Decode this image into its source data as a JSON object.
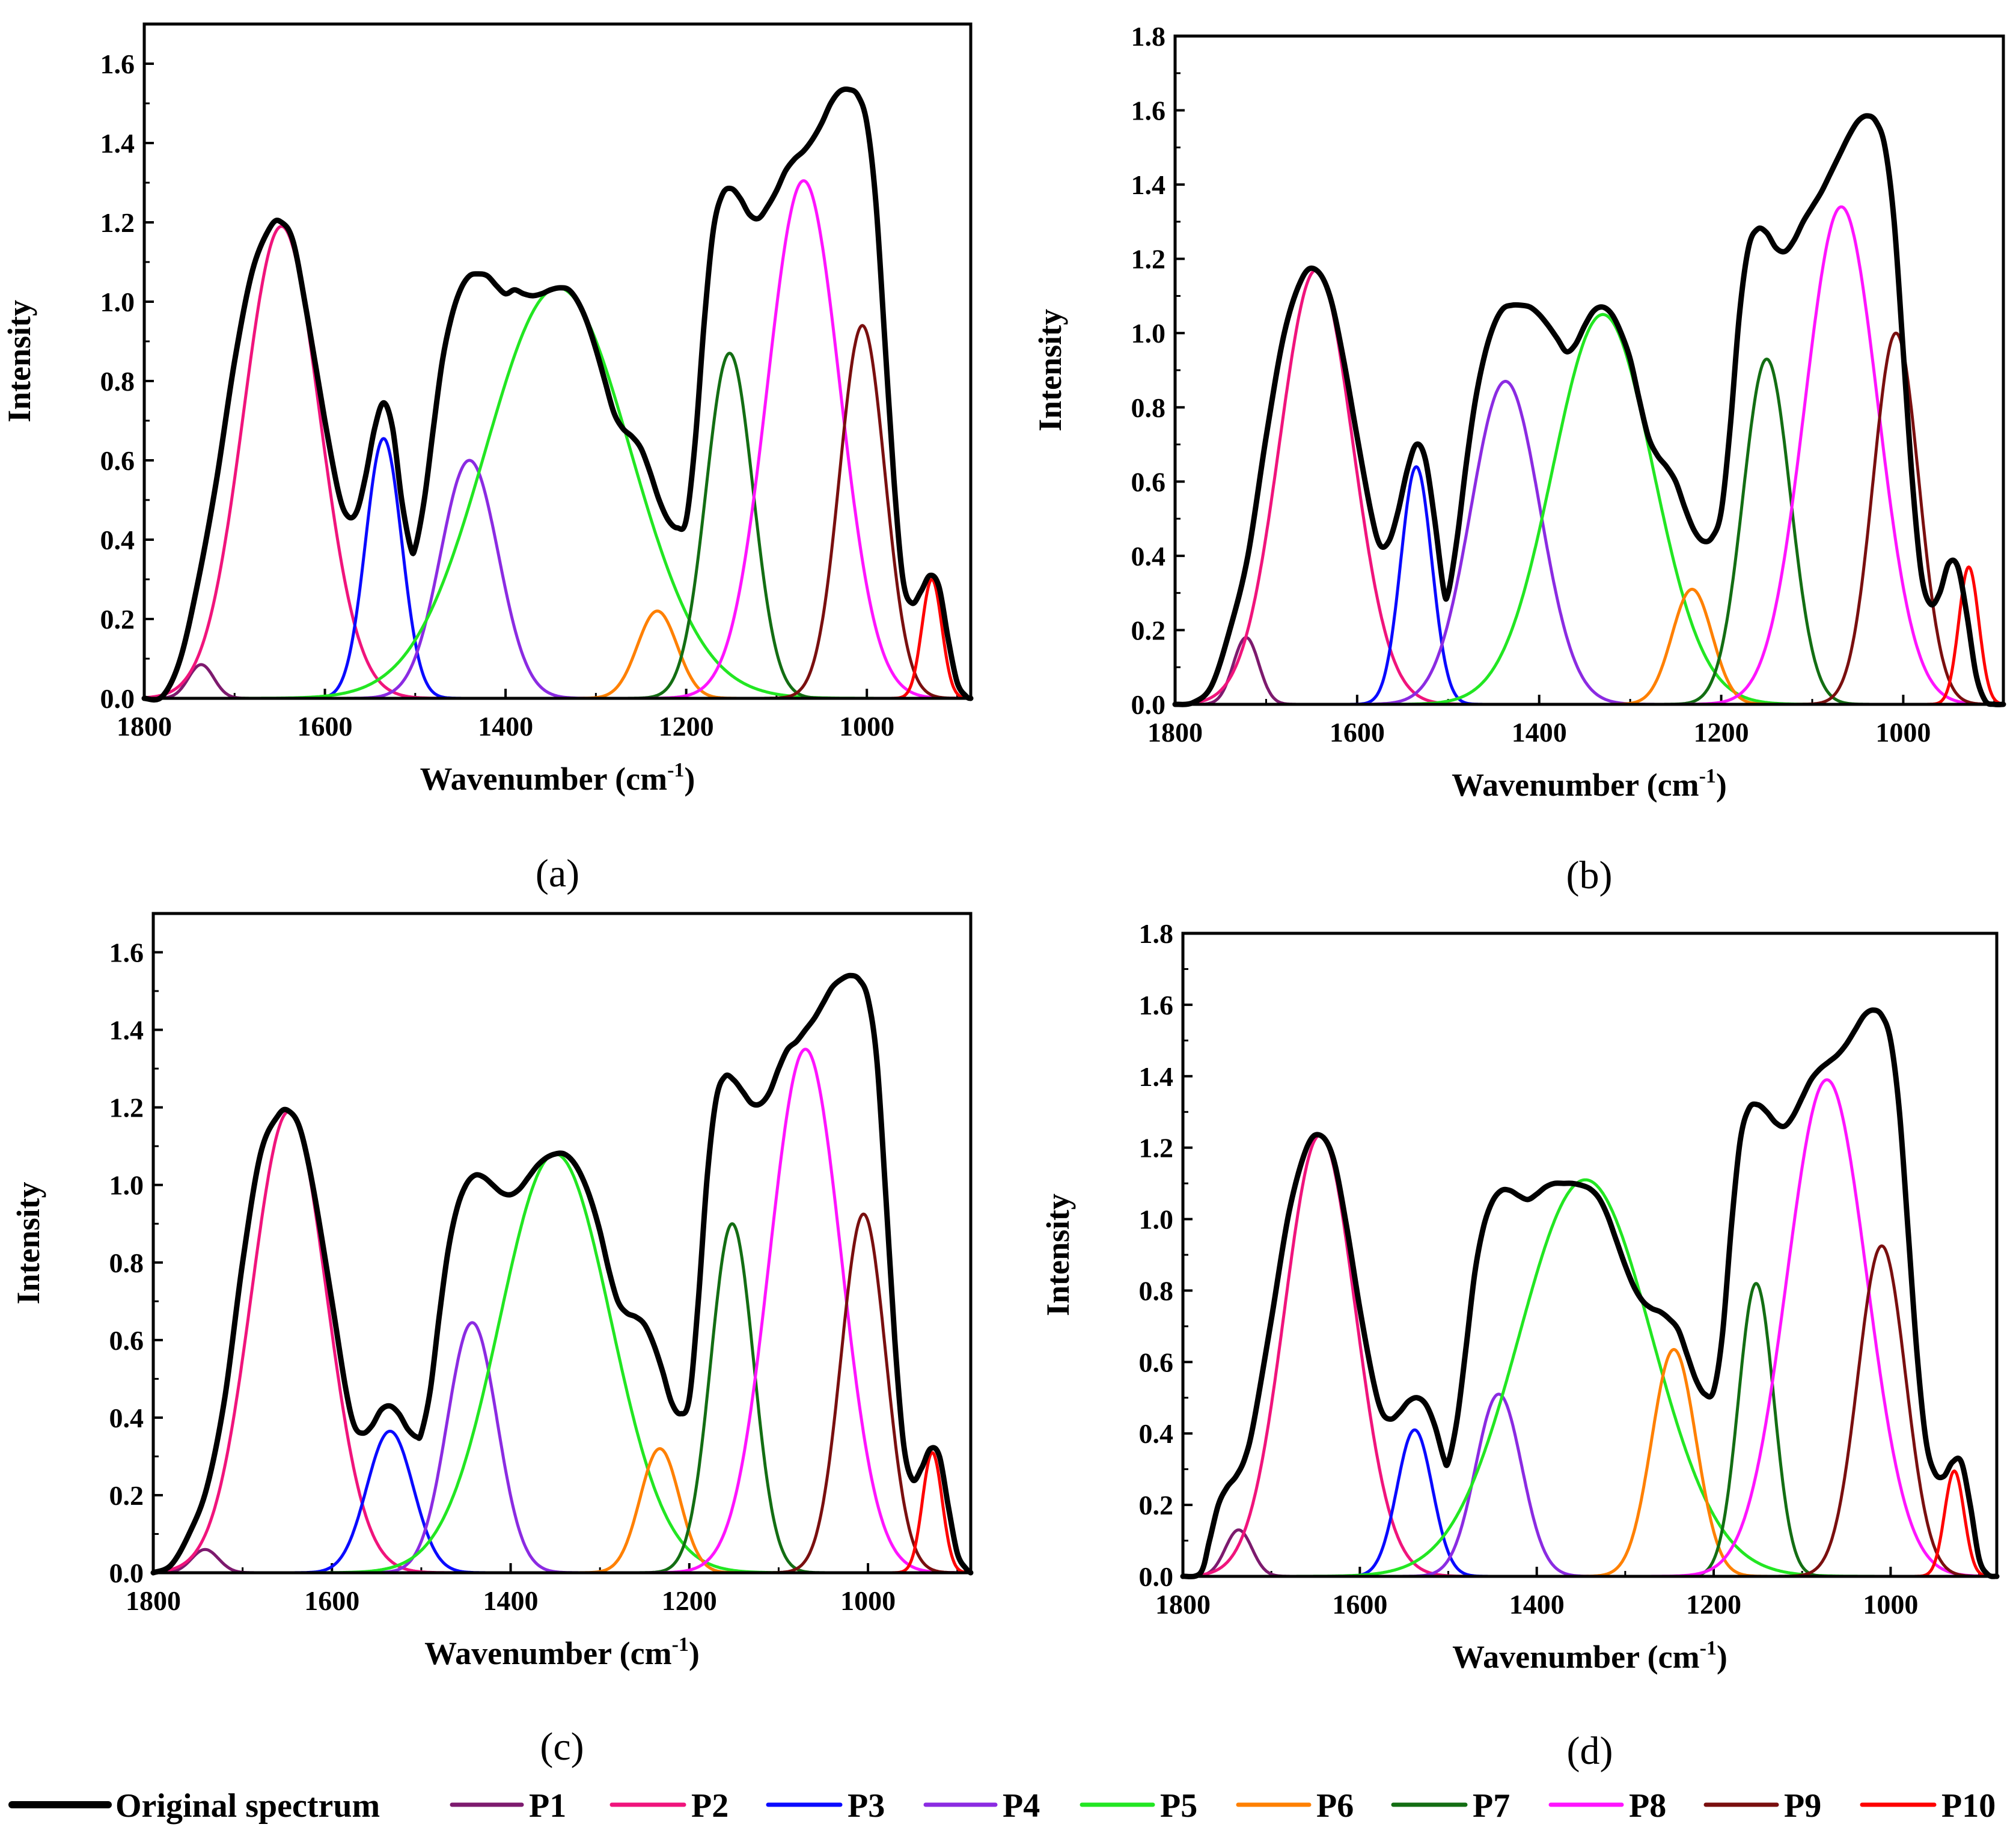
{
  "chart_data": [
    {
      "panel": "(a)",
      "type": "line",
      "xlabel": "Wavenumber (cm",
      "xlabel_sup": "-1",
      "xlabel_close": ")",
      "ylabel": "Intensity",
      "xlim": [
        1800,
        885
      ],
      "ylim": [
        0,
        1.7
      ],
      "xticks": [
        1800,
        1600,
        1400,
        1200,
        1000
      ],
      "yticks": [
        "0.0",
        "0.2",
        "0.4",
        "0.6",
        "0.8",
        "1.0",
        "1.2",
        "1.4",
        "1.6"
      ],
      "peaks": [
        {
          "name": "P1",
          "center": 1737,
          "height": 0.085,
          "width": 14
        },
        {
          "name": "P2",
          "center": 1648,
          "height": 1.19,
          "width": 42
        },
        {
          "name": "P3",
          "center": 1535,
          "height": 0.655,
          "width": 20
        },
        {
          "name": "P4",
          "center": 1440,
          "height": 0.6,
          "width": 32
        },
        {
          "name": "P5",
          "center": 1342,
          "height": 1.035,
          "width": 80
        },
        {
          "name": "P6",
          "center": 1232,
          "height": 0.22,
          "width": 22
        },
        {
          "name": "P7",
          "center": 1152,
          "height": 0.87,
          "width": 26
        },
        {
          "name": "P8",
          "center": 1070,
          "height": 1.305,
          "width": 40
        },
        {
          "name": "P9",
          "center": 1005,
          "height": 0.94,
          "width": 25
        },
        {
          "name": "P10",
          "center": 928,
          "height": 0.3,
          "width": 11
        }
      ],
      "original": {
        "x": [
          1800,
          1780,
          1760,
          1740,
          1720,
          1700,
          1680,
          1660,
          1648,
          1635,
          1620,
          1600,
          1585,
          1575,
          1565,
          1555,
          1545,
          1535,
          1525,
          1515,
          1505,
          1500,
          1490,
          1480,
          1470,
          1460,
          1450,
          1440,
          1430,
          1420,
          1410,
          1400,
          1390,
          1380,
          1370,
          1360,
          1350,
          1340,
          1330,
          1320,
          1310,
          1300,
          1290,
          1280,
          1270,
          1260,
          1250,
          1240,
          1230,
          1220,
          1210,
          1200,
          1190,
          1180,
          1170,
          1160,
          1150,
          1140,
          1130,
          1120,
          1110,
          1100,
          1090,
          1080,
          1070,
          1060,
          1050,
          1040,
          1030,
          1020,
          1010,
          1000,
          990,
          980,
          970,
          960,
          950,
          940,
          930,
          920,
          910,
          900,
          890,
          885
        ],
        "y": [
          0.0,
          0.005,
          0.1,
          0.3,
          0.55,
          0.85,
          1.08,
          1.19,
          1.2,
          1.15,
          0.97,
          0.7,
          0.52,
          0.46,
          0.47,
          0.56,
          0.68,
          0.745,
          0.68,
          0.5,
          0.38,
          0.38,
          0.5,
          0.68,
          0.85,
          0.96,
          1.03,
          1.065,
          1.07,
          1.065,
          1.04,
          1.02,
          1.03,
          1.02,
          1.015,
          1.02,
          1.03,
          1.035,
          1.03,
          1.0,
          0.95,
          0.88,
          0.8,
          0.72,
          0.68,
          0.66,
          0.63,
          0.57,
          0.5,
          0.45,
          0.43,
          0.45,
          0.65,
          0.95,
          1.18,
          1.27,
          1.285,
          1.26,
          1.22,
          1.21,
          1.24,
          1.28,
          1.33,
          1.36,
          1.38,
          1.41,
          1.45,
          1.5,
          1.53,
          1.535,
          1.52,
          1.45,
          1.25,
          0.9,
          0.55,
          0.3,
          0.24,
          0.27,
          0.31,
          0.28,
          0.15,
          0.04,
          0.005,
          0.0
        ]
      }
    },
    {
      "panel": "(b)",
      "type": "line",
      "xlabel": "Wavenumber (cm",
      "xlabel_sup": "-1",
      "xlabel_close": ")",
      "ylabel": "Intensity",
      "xlim": [
        1800,
        890
      ],
      "ylim": [
        0,
        1.8
      ],
      "xticks": [
        1800,
        1600,
        1400,
        1200,
        1000
      ],
      "yticks": [
        "0.0",
        "0.2",
        "0.4",
        "0.6",
        "0.8",
        "1.0",
        "1.2",
        "1.4",
        "1.6",
        "1.8"
      ],
      "peaks": [
        {
          "name": "P1",
          "center": 1722,
          "height": 0.18,
          "width": 14
        },
        {
          "name": "P2",
          "center": 1645,
          "height": 1.17,
          "width": 40
        },
        {
          "name": "P3",
          "center": 1535,
          "height": 0.64,
          "width": 17
        },
        {
          "name": "P4",
          "center": 1437,
          "height": 0.87,
          "width": 38
        },
        {
          "name": "P5",
          "center": 1330,
          "height": 1.05,
          "width": 55
        },
        {
          "name": "P6",
          "center": 1232,
          "height": 0.31,
          "width": 22
        },
        {
          "name": "P7",
          "center": 1150,
          "height": 0.93,
          "width": 26
        },
        {
          "name": "P8",
          "center": 1068,
          "height": 1.34,
          "width": 40
        },
        {
          "name": "P9",
          "center": 1008,
          "height": 1.0,
          "width": 25
        },
        {
          "name": "P10",
          "center": 928,
          "height": 0.37,
          "width": 11
        }
      ],
      "original": {
        "x": [
          1800,
          1780,
          1760,
          1740,
          1720,
          1700,
          1680,
          1660,
          1645,
          1630,
          1615,
          1600,
          1585,
          1575,
          1565,
          1555,
          1545,
          1535,
          1525,
          1515,
          1505,
          1500,
          1490,
          1480,
          1470,
          1460,
          1450,
          1440,
          1430,
          1420,
          1410,
          1400,
          1390,
          1380,
          1370,
          1360,
          1350,
          1340,
          1330,
          1320,
          1310,
          1300,
          1290,
          1280,
          1270,
          1260,
          1250,
          1240,
          1230,
          1220,
          1210,
          1200,
          1190,
          1180,
          1170,
          1160,
          1150,
          1140,
          1130,
          1120,
          1110,
          1100,
          1090,
          1080,
          1070,
          1060,
          1050,
          1040,
          1030,
          1020,
          1010,
          1000,
          990,
          980,
          970,
          960,
          950,
          940,
          930,
          920,
          910,
          900,
          890
        ],
        "y": [
          0.0,
          0.005,
          0.05,
          0.2,
          0.4,
          0.72,
          1.0,
          1.15,
          1.17,
          1.1,
          0.93,
          0.72,
          0.52,
          0.43,
          0.44,
          0.52,
          0.63,
          0.7,
          0.66,
          0.5,
          0.31,
          0.3,
          0.45,
          0.65,
          0.82,
          0.94,
          1.02,
          1.065,
          1.075,
          1.075,
          1.07,
          1.05,
          1.02,
          0.985,
          0.95,
          0.97,
          1.02,
          1.06,
          1.07,
          1.05,
          1.0,
          0.93,
          0.82,
          0.72,
          0.67,
          0.64,
          0.6,
          0.53,
          0.47,
          0.44,
          0.45,
          0.52,
          0.75,
          1.05,
          1.23,
          1.28,
          1.27,
          1.23,
          1.22,
          1.25,
          1.3,
          1.34,
          1.38,
          1.43,
          1.48,
          1.53,
          1.57,
          1.585,
          1.57,
          1.5,
          1.3,
          0.95,
          0.6,
          0.35,
          0.27,
          0.3,
          0.38,
          0.37,
          0.24,
          0.08,
          0.01,
          0.0,
          0.0
        ]
      }
    },
    {
      "panel": "(c)",
      "type": "line",
      "xlabel": "Wavenumber (cm",
      "xlabel_sup": "-1",
      "xlabel_close": ")",
      "ylabel": "Intensity",
      "xlim": [
        1800,
        885
      ],
      "ylim": [
        0,
        1.7
      ],
      "xticks": [
        1800,
        1600,
        1400,
        1200,
        1000
      ],
      "yticks": [
        "0.0",
        "0.2",
        "0.4",
        "0.6",
        "0.8",
        "1.0",
        "1.2",
        "1.4",
        "1.6"
      ],
      "peaks": [
        {
          "name": "P1",
          "center": 1742,
          "height": 0.06,
          "width": 15
        },
        {
          "name": "P2",
          "center": 1648,
          "height": 1.19,
          "width": 42
        },
        {
          "name": "P3",
          "center": 1535,
          "height": 0.365,
          "width": 26
        },
        {
          "name": "P4",
          "center": 1443,
          "height": 0.645,
          "width": 28
        },
        {
          "name": "P5",
          "center": 1350,
          "height": 1.08,
          "width": 62
        },
        {
          "name": "P6",
          "center": 1233,
          "height": 0.32,
          "width": 22
        },
        {
          "name": "P7",
          "center": 1152,
          "height": 0.9,
          "width": 24
        },
        {
          "name": "P8",
          "center": 1070,
          "height": 1.35,
          "width": 40
        },
        {
          "name": "P9",
          "center": 1005,
          "height": 0.925,
          "width": 25
        },
        {
          "name": "P10",
          "center": 928,
          "height": 0.31,
          "width": 11
        }
      ],
      "original": {
        "x": [
          1800,
          1780,
          1760,
          1740,
          1720,
          1700,
          1680,
          1660,
          1648,
          1635,
          1620,
          1600,
          1585,
          1575,
          1565,
          1555,
          1545,
          1535,
          1525,
          1515,
          1505,
          1500,
          1490,
          1480,
          1470,
          1460,
          1450,
          1440,
          1430,
          1420,
          1410,
          1400,
          1390,
          1380,
          1370,
          1360,
          1350,
          1340,
          1330,
          1320,
          1310,
          1300,
          1290,
          1280,
          1270,
          1260,
          1250,
          1240,
          1230,
          1220,
          1210,
          1200,
          1190,
          1180,
          1170,
          1160,
          1150,
          1140,
          1130,
          1120,
          1110,
          1100,
          1090,
          1080,
          1070,
          1060,
          1050,
          1040,
          1030,
          1020,
          1010,
          1000,
          990,
          980,
          970,
          960,
          950,
          940,
          930,
          920,
          910,
          900,
          890,
          885
        ],
        "y": [
          0.0,
          0.02,
          0.1,
          0.22,
          0.45,
          0.8,
          1.08,
          1.18,
          1.19,
          1.14,
          0.98,
          0.7,
          0.48,
          0.38,
          0.36,
          0.38,
          0.42,
          0.43,
          0.41,
          0.37,
          0.35,
          0.36,
          0.47,
          0.66,
          0.83,
          0.94,
          1.0,
          1.025,
          1.02,
          1.0,
          0.98,
          0.975,
          0.99,
          1.02,
          1.05,
          1.07,
          1.08,
          1.08,
          1.06,
          1.02,
          0.96,
          0.88,
          0.78,
          0.7,
          0.67,
          0.66,
          0.64,
          0.59,
          0.52,
          0.44,
          0.41,
          0.45,
          0.7,
          1.02,
          1.22,
          1.28,
          1.27,
          1.24,
          1.21,
          1.21,
          1.24,
          1.3,
          1.35,
          1.37,
          1.4,
          1.43,
          1.47,
          1.51,
          1.53,
          1.54,
          1.53,
          1.48,
          1.32,
          0.97,
          0.6,
          0.33,
          0.24,
          0.27,
          0.32,
          0.3,
          0.17,
          0.05,
          0.01,
          0.0
        ]
      }
    },
    {
      "panel": "(d)",
      "type": "line",
      "xlabel": "Wavenumber (cm",
      "xlabel_sup": "-1",
      "xlabel_close": ")",
      "ylabel": "Intensity",
      "xlim": [
        1800,
        880
      ],
      "ylim": [
        0,
        1.8
      ],
      "xticks": [
        1800,
        1600,
        1400,
        1200,
        1000
      ],
      "yticks": [
        "0.0",
        "0.2",
        "0.4",
        "0.6",
        "0.8",
        "1.0",
        "1.2",
        "1.4",
        "1.6",
        "1.8"
      ],
      "peaks": [
        {
          "name": "P1",
          "center": 1737,
          "height": 0.13,
          "width": 15
        },
        {
          "name": "P2",
          "center": 1645,
          "height": 1.235,
          "width": 40
        },
        {
          "name": "P3",
          "center": 1538,
          "height": 0.41,
          "width": 20
        },
        {
          "name": "P4",
          "center": 1443,
          "height": 0.51,
          "width": 26
        },
        {
          "name": "P5",
          "center": 1345,
          "height": 1.11,
          "width": 75
        },
        {
          "name": "P6",
          "center": 1245,
          "height": 0.635,
          "width": 25
        },
        {
          "name": "P7",
          "center": 1152,
          "height": 0.82,
          "width": 20
        },
        {
          "name": "P8",
          "center": 1072,
          "height": 1.39,
          "width": 45
        },
        {
          "name": "P9",
          "center": 1010,
          "height": 0.925,
          "width": 27
        },
        {
          "name": "P10",
          "center": 928,
          "height": 0.295,
          "width": 11
        }
      ],
      "original": {
        "x": [
          1800,
          1780,
          1770,
          1760,
          1750,
          1740,
          1730,
          1720,
          1700,
          1680,
          1660,
          1645,
          1630,
          1615,
          1600,
          1585,
          1575,
          1565,
          1555,
          1545,
          1535,
          1525,
          1515,
          1505,
          1500,
          1490,
          1480,
          1470,
          1460,
          1450,
          1440,
          1430,
          1420,
          1410,
          1400,
          1390,
          1380,
          1370,
          1360,
          1350,
          1340,
          1330,
          1320,
          1310,
          1300,
          1290,
          1280,
          1270,
          1260,
          1250,
          1240,
          1230,
          1220,
          1210,
          1200,
          1190,
          1180,
          1170,
          1160,
          1150,
          1140,
          1130,
          1120,
          1110,
          1100,
          1090,
          1080,
          1070,
          1060,
          1050,
          1040,
          1030,
          1020,
          1010,
          1000,
          990,
          980,
          970,
          960,
          950,
          940,
          930,
          920,
          910,
          900,
          890,
          880
        ],
        "y": [
          0.0,
          0.01,
          0.1,
          0.2,
          0.25,
          0.28,
          0.33,
          0.43,
          0.72,
          1.02,
          1.2,
          1.235,
          1.17,
          0.98,
          0.75,
          0.55,
          0.46,
          0.44,
          0.46,
          0.49,
          0.5,
          0.48,
          0.42,
          0.33,
          0.32,
          0.44,
          0.64,
          0.85,
          0.98,
          1.05,
          1.08,
          1.08,
          1.065,
          1.055,
          1.07,
          1.09,
          1.1,
          1.1,
          1.1,
          1.095,
          1.085,
          1.06,
          1.01,
          0.94,
          0.87,
          0.81,
          0.77,
          0.75,
          0.74,
          0.72,
          0.69,
          0.62,
          0.55,
          0.51,
          0.52,
          0.68,
          0.98,
          1.22,
          1.31,
          1.32,
          1.3,
          1.27,
          1.26,
          1.29,
          1.34,
          1.39,
          1.42,
          1.44,
          1.46,
          1.49,
          1.53,
          1.57,
          1.585,
          1.57,
          1.5,
          1.3,
          0.96,
          0.62,
          0.38,
          0.29,
          0.28,
          0.32,
          0.32,
          0.2,
          0.05,
          0.005,
          0.0
        ]
      }
    }
  ],
  "legend": [
    {
      "name": "Original spectrum",
      "color": "#000000"
    },
    {
      "name": "P1",
      "color": "#7d1a6e"
    },
    {
      "name": "P2",
      "color": "#f0147c"
    },
    {
      "name": "P3",
      "color": "#0a0aff"
    },
    {
      "name": "P4",
      "color": "#8b2be2"
    },
    {
      "name": "P5",
      "color": "#22e622"
    },
    {
      "name": "P6",
      "color": "#ff8000"
    },
    {
      "name": "P7",
      "color": "#136e13"
    },
    {
      "name": "P8",
      "color": "#ff14ff"
    },
    {
      "name": "P9",
      "color": "#7a0f0f"
    },
    {
      "name": "P10",
      "color": "#ff0000"
    }
  ]
}
